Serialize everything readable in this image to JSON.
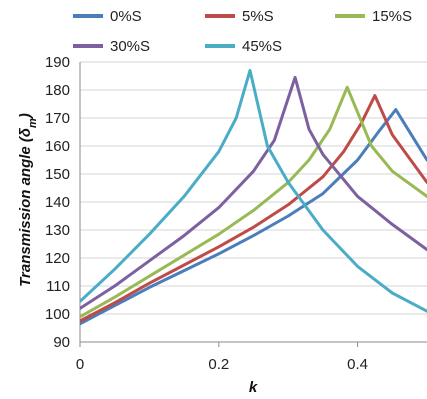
{
  "chart_data": {
    "type": "line",
    "title": "",
    "xlabel": "k",
    "ylabel_main": "Transmission angle (δ",
    "ylabel_sub": "m",
    "ylabel_end": ")",
    "xlim": [
      0,
      0.5
    ],
    "ylim": [
      90,
      190
    ],
    "xticks": [
      0,
      0.2,
      0.4
    ],
    "xtick_labels": [
      "0",
      "0.2",
      "0.4"
    ],
    "yticks": [
      90,
      100,
      110,
      120,
      130,
      140,
      150,
      160,
      170,
      180,
      190
    ],
    "ytick_labels": [
      "90",
      "100",
      "110",
      "120",
      "130",
      "140",
      "150",
      "160",
      "170",
      "180",
      "190"
    ],
    "grid": "horizontal",
    "legend_position": "top",
    "series": [
      {
        "name": "0%S",
        "color": "#4a7ebb",
        "points": [
          [
            0,
            96.5
          ],
          [
            0.05,
            103
          ],
          [
            0.1,
            109.5
          ],
          [
            0.15,
            115.5
          ],
          [
            0.2,
            121.5
          ],
          [
            0.25,
            128
          ],
          [
            0.3,
            135
          ],
          [
            0.35,
            143
          ],
          [
            0.4,
            155
          ],
          [
            0.43,
            165
          ],
          [
            0.455,
            173
          ],
          [
            0.47,
            167
          ],
          [
            0.5,
            155
          ]
        ]
      },
      {
        "name": "5%S",
        "color": "#be4b48",
        "points": [
          [
            0,
            97.5
          ],
          [
            0.05,
            104
          ],
          [
            0.1,
            111
          ],
          [
            0.15,
            117.5
          ],
          [
            0.2,
            124
          ],
          [
            0.25,
            131
          ],
          [
            0.3,
            139
          ],
          [
            0.35,
            149
          ],
          [
            0.38,
            158
          ],
          [
            0.405,
            168
          ],
          [
            0.425,
            178
          ],
          [
            0.45,
            164
          ],
          [
            0.5,
            147
          ]
        ]
      },
      {
        "name": "15%S",
        "color": "#98b954",
        "points": [
          [
            0,
            99
          ],
          [
            0.05,
            106
          ],
          [
            0.1,
            113.5
          ],
          [
            0.15,
            121
          ],
          [
            0.2,
            128.5
          ],
          [
            0.25,
            137
          ],
          [
            0.3,
            147
          ],
          [
            0.33,
            155
          ],
          [
            0.36,
            166
          ],
          [
            0.385,
            181
          ],
          [
            0.42,
            160
          ],
          [
            0.45,
            151
          ],
          [
            0.5,
            142
          ]
        ]
      },
      {
        "name": "30%S",
        "color": "#7d60a0",
        "points": [
          [
            0,
            102
          ],
          [
            0.05,
            110
          ],
          [
            0.1,
            119
          ],
          [
            0.15,
            128
          ],
          [
            0.2,
            138
          ],
          [
            0.25,
            151
          ],
          [
            0.28,
            162
          ],
          [
            0.31,
            184.5
          ],
          [
            0.33,
            166
          ],
          [
            0.35,
            157
          ],
          [
            0.4,
            142
          ],
          [
            0.45,
            132
          ],
          [
            0.5,
            123
          ]
        ]
      },
      {
        "name": "45%S",
        "color": "#4bacc6",
        "points": [
          [
            0,
            104.5
          ],
          [
            0.05,
            116
          ],
          [
            0.1,
            128.5
          ],
          [
            0.15,
            142
          ],
          [
            0.2,
            158
          ],
          [
            0.225,
            170
          ],
          [
            0.245,
            187
          ],
          [
            0.27,
            160
          ],
          [
            0.3,
            147
          ],
          [
            0.35,
            130
          ],
          [
            0.4,
            117
          ],
          [
            0.45,
            107.5
          ],
          [
            0.5,
            101
          ]
        ]
      }
    ]
  }
}
